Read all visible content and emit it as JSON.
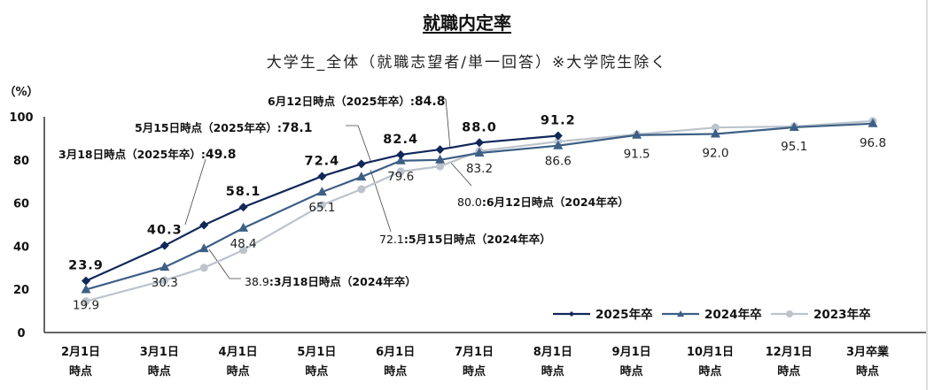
{
  "chart_data": {
    "type": "line",
    "title": "就職内定率",
    "subtitle": "大学生_全体（就職志望者/単一回答）※大学院生除く",
    "ylabel": "（%）",
    "ylim": [
      0,
      100
    ],
    "yticks": [
      "0",
      "20",
      "40",
      "60",
      "80",
      "100"
    ],
    "categories": [
      [
        "2月1日",
        "時点"
      ],
      [
        "3月1日",
        "時点"
      ],
      [
        "4月1日",
        "時点"
      ],
      [
        "5月1日",
        "時点"
      ],
      [
        "6月1日",
        "時点"
      ],
      [
        "7月1日",
        "時点"
      ],
      [
        "8月1日",
        "時点"
      ],
      [
        "9月1日",
        "時点"
      ],
      [
        "10月1日",
        "時点"
      ],
      [
        "12月1日",
        "時点"
      ],
      [
        "3月卒業",
        "時点"
      ]
    ],
    "grid": false,
    "legend": "bottom-right",
    "series": [
      {
        "name": "2025年卒",
        "color": "#10275a",
        "marker": "diamond",
        "x": [
          0,
          1,
          1.5,
          2,
          3,
          3.5,
          4,
          4.5,
          5,
          6
        ],
        "values": [
          23.9,
          40.3,
          49.8,
          58.1,
          72.4,
          78.1,
          82.4,
          84.8,
          88.0,
          91.2
        ],
        "labels": [
          "23.9",
          "40.3",
          "",
          "58.1",
          "72.4",
          "",
          "82.4",
          "",
          "88.0",
          "91.2"
        ]
      },
      {
        "name": "2024年卒",
        "color": "#3d5f86",
        "marker": "triangle",
        "x": [
          0,
          1,
          1.5,
          2,
          3,
          3.5,
          4,
          4.5,
          5,
          6,
          7,
          8,
          9,
          10
        ],
        "values": [
          19.9,
          30.3,
          38.9,
          48.4,
          65.1,
          72.1,
          79.6,
          80.0,
          83.2,
          86.6,
          91.5,
          92.0,
          95.1,
          96.8
        ],
        "labels": [
          "19.9",
          "30.3",
          "",
          "48.4",
          "65.1",
          "",
          "79.6",
          "",
          "83.2",
          "86.6",
          "91.5",
          "92.0",
          "95.1",
          "96.8"
        ]
      },
      {
        "name": "2023年卒",
        "color": "#bcc3cc",
        "marker": "circle",
        "x": [
          0,
          1,
          1.5,
          2,
          3,
          3.5,
          4,
          4.5,
          5,
          6,
          7,
          8,
          9,
          10
        ],
        "values": [
          14.5,
          24.2,
          30.0,
          38.2,
          59.1,
          66.4,
          74.6,
          77.0,
          84.1,
          88.5,
          91.8,
          95.0,
          95.5,
          98.0
        ]
      }
    ],
    "annotations": {
      "a2025_0318": {
        "label": "3月18日時点（2025年卒）:",
        "value": "49.8"
      },
      "a2025_0515": {
        "label": "5月15日時点（2025年卒）:",
        "value": "78.1"
      },
      "a2025_0612": {
        "label": "6月12日時点（2025年卒）:",
        "value": "84.8"
      },
      "a2024_0318": {
        "value": "38.9",
        "label": ":3月18日時点（2024年卒）"
      },
      "a2024_0515": {
        "value": "72.1",
        "label": ":5月15日時点（2024年卒）"
      },
      "a2024_0612": {
        "value": "80.0",
        "label": ":6月12日時点（2024年卒）"
      }
    }
  }
}
